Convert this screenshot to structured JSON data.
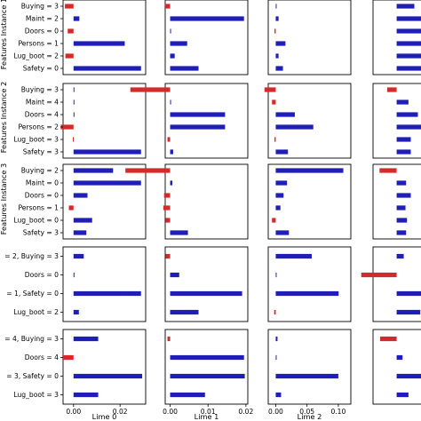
{
  "chart_data": {
    "type": "bar",
    "orientation": "horizontal",
    "layout": "grid of 5 rows x 4 columns of small horizontal bar panels",
    "colors": {
      "positive": "#1f1fb8",
      "negative": "#d42a2a"
    },
    "grid": false,
    "row_labels": [
      "Features Instance 1",
      "Features Instance 2",
      "Features Instance 3",
      "",
      ""
    ],
    "columns": [
      {
        "xlabel": "Lime 0",
        "ticks": [
          "0.00",
          "0.02"
        ],
        "tick_values": [
          0.0,
          0.02
        ],
        "xlim": [
          -0.0045,
          0.031
        ]
      },
      {
        "xlabel": "Lime 1",
        "ticks": [
          "0.00",
          "0.01",
          "0.02"
        ],
        "tick_values": [
          0.0,
          0.01,
          0.02
        ],
        "xlim": [
          -0.0013,
          0.0205
        ]
      },
      {
        "xlabel": "Lime 2",
        "ticks": [
          "0.00",
          "0.05",
          "0.10"
        ],
        "tick_values": [
          0.0,
          0.05,
          0.1
        ],
        "xlim": [
          -0.012,
          0.12
        ]
      },
      {
        "xlabel": "",
        "ticks": [],
        "tick_values": [],
        "xlim": [
          -0.02,
          0.05
        ]
      }
    ],
    "panels": [
      {
        "labels": [
          "Buying = 3",
          "Maint = 2",
          "Doors = 0",
          "Persons = 1",
          "Lug_boot = 2",
          "Safety = 0"
        ],
        "series": [
          [
            -0.0037,
            0.0025,
            -0.0025,
            0.022,
            -0.0035,
            0.029
          ],
          [
            -0.0013,
            0.0195,
            0.0001,
            0.0045,
            0.0012,
            0.0075
          ],
          [
            0.0012,
            0.0045,
            -0.002,
            0.0155,
            0.0045,
            0.0115
          ],
          [
            0.015,
            0.025,
            0.045,
            0.03,
            0.04,
            0.03
          ]
        ]
      },
      {
        "labels": [
          "Buying = 3",
          "Maint = 4",
          "Doors = 4",
          "Persons = 2",
          "Lug_boot = 3",
          "Safety = 3"
        ],
        "series": [
          [
            0.0002,
            0.0002,
            0.0,
            -0.0055,
            -0.0003,
            0.029
          ],
          [
            -0.0105,
            0.0,
            0.0145,
            0.0145,
            -0.0007,
            0.0008
          ],
          [
            -0.018,
            -0.006,
            0.0305,
            0.06,
            -0.002,
            0.0195
          ],
          [
            -0.008,
            0.01,
            0.018,
            0.022,
            0.012,
            0.012
          ]
        ]
      },
      {
        "labels": [
          "Buying = 2",
          "Maint = 0",
          "Doors = 0",
          "Persons = 1",
          "Lug_boot = 0",
          "Safety = 3"
        ],
        "series": [
          [
            0.017,
            0.029,
            0.006,
            -0.002,
            0.008,
            0.0055
          ],
          [
            -0.0118,
            0.0006,
            -0.0016,
            -0.0018,
            -0.0012,
            0.0047
          ],
          [
            0.108,
            0.018,
            0.0125,
            0.0075,
            -0.006,
            0.021
          ],
          [
            -0.0145,
            0.008,
            0.012,
            0.0075,
            0.0088,
            0.008
          ]
        ]
      },
      {
        "labels": [
          "= 2, Buying = 3",
          "Doors = 0",
          "= 1, Safety = 0",
          "Lug_boot = 2"
        ],
        "series": [
          [
            0.0044,
            0.0,
            0.029,
            0.0023
          ],
          [
            -0.0012,
            0.0024,
            0.019,
            0.0075
          ],
          [
            0.0575,
            0.0,
            0.1005,
            -0.0025
          ],
          [
            0.006,
            -0.03,
            0.06,
            0.02
          ]
        ]
      },
      {
        "labels": [
          "= 4, Buying = 3",
          "Doors = 4",
          "= 3, Safety = 0",
          "Lug_boot = 3"
        ],
        "series": [
          [
            0.0106,
            -0.0048,
            0.0295,
            0.0106
          ],
          [
            -0.0007,
            0.0195,
            0.0197,
            0.0092
          ],
          [
            0.0028,
            0.0,
            0.1,
            0.0085
          ],
          [
            -0.014,
            0.005,
            0.035,
            0.01
          ]
        ]
      }
    ]
  }
}
